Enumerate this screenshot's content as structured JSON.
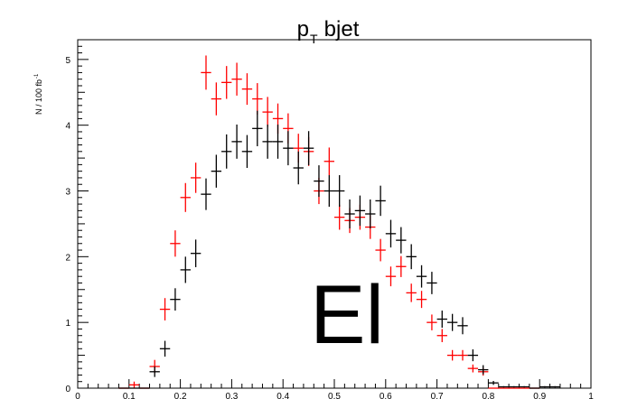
{
  "chart_data": {
    "type": "scatter",
    "style": "histogram-error-crosses",
    "title": {
      "main": "p",
      "subscript": "T",
      "rest": " bjet"
    },
    "ylabel": "N / 100 fb",
    "ylabel_superscript": "-1",
    "xlabel": "",
    "annotation": "El",
    "xlim": [
      0,
      1
    ],
    "ylim": [
      0,
      5.3
    ],
    "x_ticks": [
      0,
      0.1,
      0.2,
      0.3,
      0.4,
      0.5,
      0.6,
      0.7,
      0.8,
      0.9,
      1
    ],
    "x_tick_labels": [
      "0",
      "0.1",
      "0.2",
      "0.3",
      "0.4",
      "0.5",
      "0.6",
      "0.7",
      "0.8",
      "0.9",
      "1"
    ],
    "y_ticks": [
      0,
      1,
      2,
      3,
      4,
      5
    ],
    "y_tick_labels": [
      "0",
      "1",
      "2",
      "3",
      "4",
      "5"
    ],
    "bin_half_width": 0.01,
    "grid": false,
    "series": [
      {
        "color": "#ff0000",
        "x": [
          0.09,
          0.11,
          0.13,
          0.15,
          0.17,
          0.19,
          0.21,
          0.23,
          0.25,
          0.27,
          0.29,
          0.31,
          0.33,
          0.35,
          0.37,
          0.39,
          0.41,
          0.43,
          0.45,
          0.47,
          0.49,
          0.51,
          0.53,
          0.55,
          0.57,
          0.59,
          0.61,
          0.63,
          0.65,
          0.67,
          0.69,
          0.71,
          0.73,
          0.75,
          0.77,
          0.79,
          0.81,
          0.83,
          0.85,
          0.87,
          0.89
        ],
        "y": [
          0.0,
          0.05,
          0.0,
          0.33,
          1.2,
          2.2,
          2.9,
          3.2,
          4.8,
          4.4,
          4.65,
          4.7,
          4.55,
          4.4,
          4.2,
          4.1,
          3.95,
          3.65,
          3.6,
          3.0,
          3.45,
          2.6,
          2.55,
          2.6,
          2.45,
          2.1,
          1.7,
          1.85,
          1.45,
          1.35,
          1.0,
          0.8,
          0.5,
          0.5,
          0.3,
          0.25,
          0.0,
          0.0,
          0.0,
          0.0,
          0.0
        ],
        "yerr": [
          0.0,
          0.05,
          0.0,
          0.1,
          0.17,
          0.2,
          0.22,
          0.23,
          0.26,
          0.25,
          0.25,
          0.25,
          0.24,
          0.24,
          0.23,
          0.23,
          0.23,
          0.22,
          0.22,
          0.2,
          0.21,
          0.19,
          0.19,
          0.19,
          0.18,
          0.17,
          0.15,
          0.16,
          0.14,
          0.13,
          0.12,
          0.1,
          0.08,
          0.08,
          0.06,
          0.06,
          0.0,
          0.0,
          0.0,
          0.0,
          0.0
        ]
      },
      {
        "color": "#000000",
        "x": [
          0.09,
          0.11,
          0.13,
          0.15,
          0.17,
          0.19,
          0.21,
          0.23,
          0.25,
          0.27,
          0.29,
          0.31,
          0.33,
          0.35,
          0.37,
          0.39,
          0.41,
          0.43,
          0.45,
          0.47,
          0.49,
          0.51,
          0.53,
          0.55,
          0.57,
          0.59,
          0.61,
          0.63,
          0.65,
          0.67,
          0.69,
          0.71,
          0.73,
          0.75,
          0.77,
          0.79,
          0.81,
          0.83,
          0.85,
          0.87,
          0.89,
          0.91,
          0.93
        ],
        "y": [
          0.0,
          0.0,
          0.0,
          0.25,
          0.6,
          1.35,
          1.8,
          2.05,
          2.95,
          3.3,
          3.6,
          3.75,
          3.6,
          3.95,
          3.75,
          3.75,
          3.65,
          3.35,
          3.65,
          3.15,
          3.0,
          3.0,
          2.65,
          2.7,
          2.65,
          2.85,
          2.35,
          2.25,
          2.0,
          1.7,
          1.6,
          1.05,
          1.0,
          0.95,
          0.5,
          0.28,
          0.08,
          0.02,
          0.02,
          0.02,
          0.0,
          0.02,
          0.02
        ],
        "yerr": [
          0.0,
          0.0,
          0.0,
          0.08,
          0.12,
          0.17,
          0.2,
          0.21,
          0.24,
          0.25,
          0.26,
          0.26,
          0.25,
          0.27,
          0.26,
          0.26,
          0.26,
          0.25,
          0.26,
          0.24,
          0.24,
          0.24,
          0.22,
          0.23,
          0.22,
          0.23,
          0.21,
          0.2,
          0.19,
          0.17,
          0.17,
          0.13,
          0.13,
          0.13,
          0.09,
          0.07,
          0.03,
          0.01,
          0.01,
          0.01,
          0.0,
          0.01,
          0.01
        ]
      }
    ]
  }
}
